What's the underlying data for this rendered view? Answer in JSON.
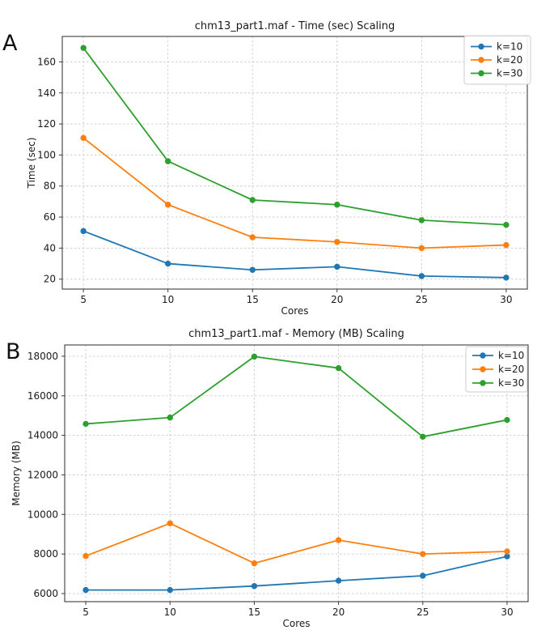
{
  "style": {
    "background": "#ffffff",
    "grid_color": "#c9c9c9",
    "spine_color": "#3d3d3d",
    "text_color": "#1a1a1a",
    "series_colors": {
      "k10": "#1f77b4",
      "k20": "#ff7f0e",
      "k30": "#2ca02c"
    }
  },
  "panels": [
    {
      "label": "A"
    },
    {
      "label": "B"
    }
  ],
  "chart_data": [
    {
      "type": "line",
      "title": "chm13_part1.maf - Time (sec) Scaling",
      "xlabel": "Cores",
      "ylabel": "Time (sec)",
      "x": [
        5,
        10,
        15,
        20,
        25,
        30
      ],
      "xticks": [
        5,
        10,
        15,
        20,
        25,
        30
      ],
      "yticks": [
        20,
        40,
        60,
        80,
        100,
        120,
        140,
        160
      ],
      "xlim": [
        3.75,
        31.25
      ],
      "ylim": [
        13.6,
        176.4
      ],
      "grid": true,
      "legend_position": "upper right",
      "series": [
        {
          "name": "k=10",
          "color": "#1f77b4",
          "values": [
            51,
            30,
            26,
            28,
            22,
            21
          ]
        },
        {
          "name": "k=20",
          "color": "#ff7f0e",
          "values": [
            111,
            68,
            47,
            44,
            40,
            42
          ]
        },
        {
          "name": "k=30",
          "color": "#2ca02c",
          "values": [
            169,
            96,
            71,
            68,
            58,
            55
          ]
        }
      ]
    },
    {
      "type": "line",
      "title": "chm13_part1.maf - Memory (MB) Scaling",
      "xlabel": "Cores",
      "ylabel": "Memory (MB)",
      "x": [
        5,
        10,
        15,
        20,
        25,
        30
      ],
      "xticks": [
        5,
        10,
        15,
        20,
        25,
        30
      ],
      "yticks": [
        6000,
        8000,
        10000,
        12000,
        14000,
        16000,
        18000
      ],
      "xlim": [
        3.75,
        31.25
      ],
      "ylim": [
        5590,
        18570
      ],
      "grid": true,
      "legend_position": "upper right",
      "series": [
        {
          "name": "k=10",
          "color": "#1f77b4",
          "values": [
            6180,
            6180,
            6380,
            6650,
            6900,
            7880
          ]
        },
        {
          "name": "k=20",
          "color": "#ff7f0e",
          "values": [
            7900,
            9550,
            7530,
            8700,
            8000,
            8130
          ]
        },
        {
          "name": "k=30",
          "color": "#2ca02c",
          "values": [
            14580,
            14900,
            17980,
            17400,
            13930,
            14780
          ]
        }
      ]
    }
  ]
}
